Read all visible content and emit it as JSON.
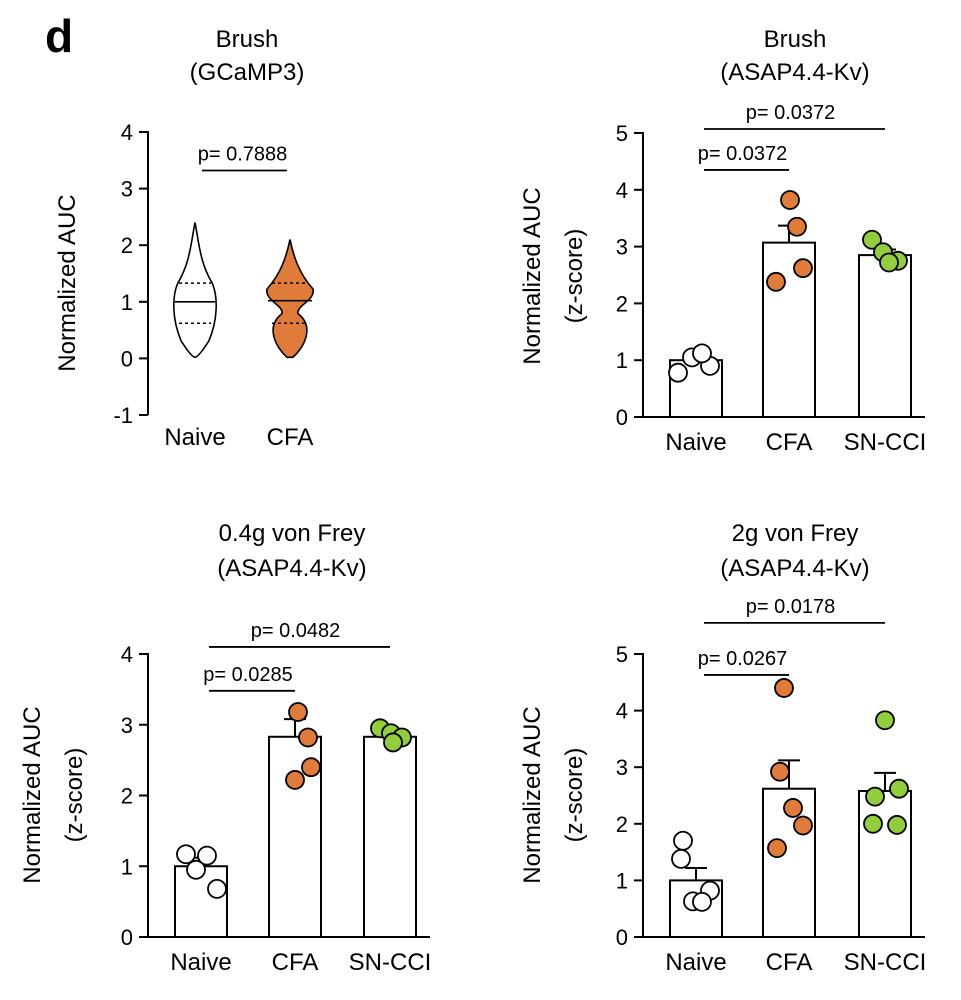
{
  "panel_letter": "d",
  "colors": {
    "naive": "#ffffff",
    "cfa": "#e07b39",
    "sncci": "#92cd3b",
    "outline": "#000000"
  },
  "chart_data": [
    {
      "type": "violin",
      "title": [
        "Brush",
        "(GCaMP3)"
      ],
      "ylabel": [
        "Normalized AUC"
      ],
      "ylim": [
        -1,
        4
      ],
      "yticks": [
        -1,
        0,
        1,
        2,
        3,
        4
      ],
      "categories": [
        "Naive",
        "CFA"
      ],
      "groups": [
        {
          "name": "Naive",
          "color": "#ffffff",
          "min": 0.02,
          "max": 2.4,
          "median": 1.0,
          "q1": 0.62,
          "q3": 1.33
        },
        {
          "name": "CFA",
          "color": "#e07b39",
          "min": 0.02,
          "max": 2.1,
          "median": 1.02,
          "q1": 0.62,
          "q3": 1.33
        }
      ],
      "comparisons": [
        {
          "from": "Naive",
          "to": "CFA",
          "label": "p= 0.7888",
          "y": 3.32
        }
      ]
    },
    {
      "type": "bar",
      "title": [
        "Brush",
        "(ASAP4.4-Kv)"
      ],
      "ylabel": [
        "Normalized AUC",
        "(z-score)"
      ],
      "ylim": [
        0,
        5
      ],
      "yticks": [
        0,
        1,
        2,
        3,
        4,
        5
      ],
      "categories": [
        "Naive",
        "CFA",
        "SN-CCI"
      ],
      "groups": [
        {
          "name": "Naive",
          "color": "#ffffff",
          "mean": 1.0,
          "sem": 0.07,
          "points": [
            1.05,
            0.9,
            0.78,
            1.12
          ]
        },
        {
          "name": "CFA",
          "color": "#e07b39",
          "mean": 3.07,
          "sem": 0.3,
          "points": [
            3.82,
            3.35,
            2.62,
            2.38
          ]
        },
        {
          "name": "SN-CCI",
          "color": "#92cd3b",
          "mean": 2.85,
          "sem": 0.1,
          "points": [
            3.12,
            2.9,
            2.75,
            2.72
          ]
        }
      ],
      "comparisons": [
        {
          "from": "Naive",
          "to": "CFA",
          "label": "p= 0.0372",
          "y": 4.35
        },
        {
          "from": "Naive",
          "to": "SN-CCI",
          "label": "p= 0.0372",
          "y": 5.07
        }
      ]
    },
    {
      "type": "bar",
      "title": [
        "0.4g von Frey",
        "(ASAP4.4-Kv)"
      ],
      "ylabel": [
        "Normalized AUC",
        "(z-score)"
      ],
      "ylim": [
        0,
        4
      ],
      "yticks": [
        0,
        1,
        2,
        3,
        4
      ],
      "categories": [
        "Naive",
        "CFA",
        "SN-CCI"
      ],
      "groups": [
        {
          "name": "Naive",
          "color": "#ffffff",
          "mean": 1.0,
          "sem": 0.12,
          "points": [
            1.17,
            0.95,
            0.68,
            1.15
          ]
        },
        {
          "name": "CFA",
          "color": "#e07b39",
          "mean": 2.83,
          "sem": 0.25,
          "points": [
            3.18,
            2.82,
            2.4,
            2.22
          ]
        },
        {
          "name": "SN-CCI",
          "color": "#92cd3b",
          "mean": 2.83,
          "sem": 0.06,
          "points": [
            2.95,
            2.88,
            2.82,
            2.75
          ]
        }
      ],
      "comparisons": [
        {
          "from": "Naive",
          "to": "CFA",
          "label": "p= 0.0285",
          "y": 3.48
        },
        {
          "from": "Naive",
          "to": "SN-CCI",
          "label": "p= 0.0482",
          "y": 4.1
        }
      ]
    },
    {
      "type": "bar",
      "title": [
        "2g von Frey",
        "(ASAP4.4-Kv)"
      ],
      "ylabel": [
        "Normalized AUC",
        "(z-score)"
      ],
      "ylim": [
        0,
        5
      ],
      "yticks": [
        0,
        1,
        2,
        3,
        4,
        5
      ],
      "categories": [
        "Naive",
        "CFA",
        "SN-CCI"
      ],
      "groups": [
        {
          "name": "Naive",
          "color": "#ffffff",
          "mean": 1.0,
          "sem": 0.22,
          "points": [
            1.7,
            1.38,
            0.82,
            0.63,
            0.62
          ]
        },
        {
          "name": "CFA",
          "color": "#e07b39",
          "mean": 2.62,
          "sem": 0.5,
          "points": [
            4.4,
            2.92,
            2.28,
            1.97,
            1.57
          ]
        },
        {
          "name": "SN-CCI",
          "color": "#92cd3b",
          "mean": 2.58,
          "sem": 0.32,
          "points": [
            3.83,
            2.48,
            2.62,
            2.0,
            1.98
          ]
        }
      ],
      "comparisons": [
        {
          "from": "Naive",
          "to": "CFA",
          "label": "p= 0.0267",
          "y": 4.63
        },
        {
          "from": "Naive",
          "to": "SN-CCI",
          "label": "p= 0.0178",
          "y": 5.55
        }
      ]
    }
  ]
}
